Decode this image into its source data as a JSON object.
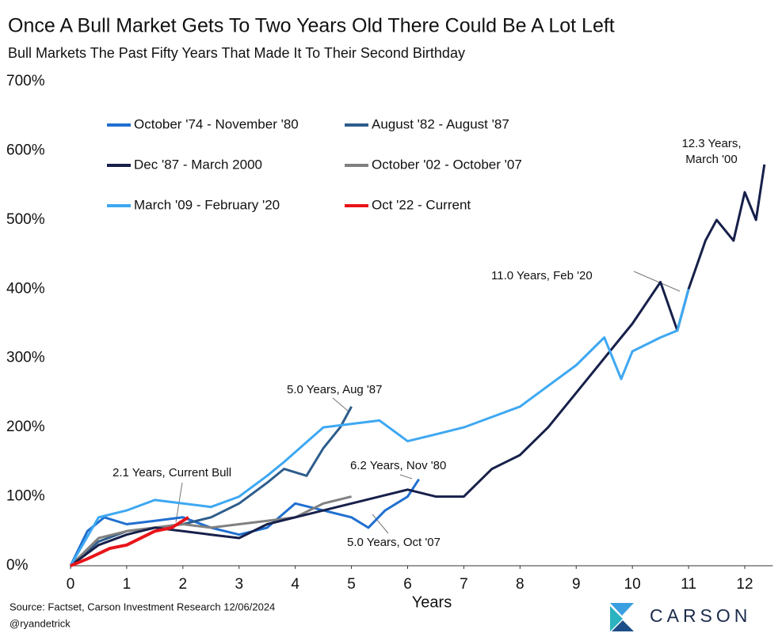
{
  "chart_data": {
    "type": "line",
    "title": "Once A Bull Market Gets To Two Years Old There Could Be A Lot Left",
    "subtitle": "Bull Markets The Past Fifty Years That Made It To Their Second Birthday",
    "x_label": "Years",
    "source": "Source: Factset, Carson Investment Research 12/06/2024",
    "handle": "@ryandetrick",
    "logo": "CARSON",
    "xlim": [
      0,
      12.5
    ],
    "xticks": [
      0,
      1,
      2,
      3,
      4,
      5,
      6,
      7,
      8,
      9,
      10,
      11,
      12
    ],
    "ylim": [
      0,
      700
    ],
    "yticks": [
      {
        "value": 0,
        "label": "0%"
      },
      {
        "value": 100,
        "label": "100%"
      },
      {
        "value": 200,
        "label": "200%"
      },
      {
        "value": 300,
        "label": "300%"
      },
      {
        "value": 400,
        "label": "400%"
      },
      {
        "value": 500,
        "label": "500%"
      },
      {
        "value": 600,
        "label": "600%"
      },
      {
        "value": 700,
        "label": "700%"
      }
    ],
    "grid": false,
    "series": [
      {
        "name": "October '74 - November '80",
        "color": "#1f6fd0",
        "x": [
          0,
          0.3,
          0.6,
          1,
          1.5,
          2,
          2.5,
          3,
          3.5,
          4,
          4.5,
          5,
          5.3,
          5.6,
          6,
          6.2
        ],
        "values": [
          0,
          50,
          70,
          60,
          65,
          70,
          55,
          45,
          55,
          90,
          80,
          70,
          55,
          80,
          100,
          125
        ]
      },
      {
        "name": "August '82 - August '87",
        "color": "#2d5d8c",
        "x": [
          0,
          0.5,
          1,
          1.5,
          2,
          2.5,
          3,
          3.5,
          3.8,
          4.2,
          4.5,
          4.8,
          5
        ],
        "values": [
          0,
          35,
          50,
          55,
          60,
          70,
          90,
          120,
          140,
          130,
          170,
          200,
          230
        ]
      },
      {
        "name": "Dec '87 - March 2000",
        "color": "#17204a",
        "x": [
          0,
          0.5,
          1,
          1.5,
          2,
          2.5,
          3,
          3.5,
          4,
          4.5,
          5,
          5.5,
          6,
          6.5,
          7,
          7.5,
          8,
          8.5,
          9,
          9.5,
          10,
          10.5,
          10.8,
          11,
          11.3,
          11.5,
          11.8,
          12,
          12.2,
          12.35
        ],
        "values": [
          0,
          30,
          45,
          55,
          50,
          45,
          40,
          60,
          70,
          80,
          90,
          100,
          110,
          100,
          100,
          140,
          160,
          200,
          250,
          300,
          350,
          410,
          340,
          400,
          470,
          500,
          470,
          540,
          500,
          580
        ]
      },
      {
        "name": "October '02 - October '07",
        "color": "#808080",
        "x": [
          0,
          0.5,
          1,
          1.5,
          2,
          2.5,
          3,
          3.5,
          4,
          4.5,
          5
        ],
        "values": [
          0,
          40,
          50,
          55,
          60,
          55,
          60,
          65,
          70,
          90,
          100
        ]
      },
      {
        "name": "March '09 - February '20",
        "color": "#3ea8f2",
        "x": [
          0,
          0.5,
          1,
          1.5,
          2,
          2.5,
          3,
          3.5,
          3.8,
          4.5,
          5,
          5.5,
          6,
          6.5,
          7,
          7.5,
          8,
          8.5,
          9,
          9.5,
          9.8,
          10,
          10.5,
          10.8,
          11
        ],
        "values": [
          0,
          70,
          80,
          95,
          90,
          85,
          100,
          130,
          150,
          200,
          205,
          210,
          180,
          190,
          200,
          215,
          230,
          260,
          290,
          330,
          270,
          310,
          330,
          340,
          400
        ]
      },
      {
        "name": "Oct '22 - Current",
        "color": "#e8141a",
        "x": [
          0,
          0.3,
          0.7,
          1,
          1.5,
          1.8,
          2.1
        ],
        "values": [
          0,
          10,
          25,
          30,
          50,
          55,
          70
        ]
      }
    ],
    "annotations": [
      {
        "text": [
          "12.3 Years,",
          "March '00"
        ]
      },
      {
        "text": [
          "11.0 Years, Feb '20"
        ]
      },
      {
        "text": [
          "5.0 Years, Aug '87"
        ]
      },
      {
        "text": [
          "2.1 Years, Current Bull"
        ]
      },
      {
        "text": [
          "6.2 Years, Nov '80"
        ]
      },
      {
        "text": [
          "5.0 Years, Oct '07"
        ]
      }
    ]
  }
}
